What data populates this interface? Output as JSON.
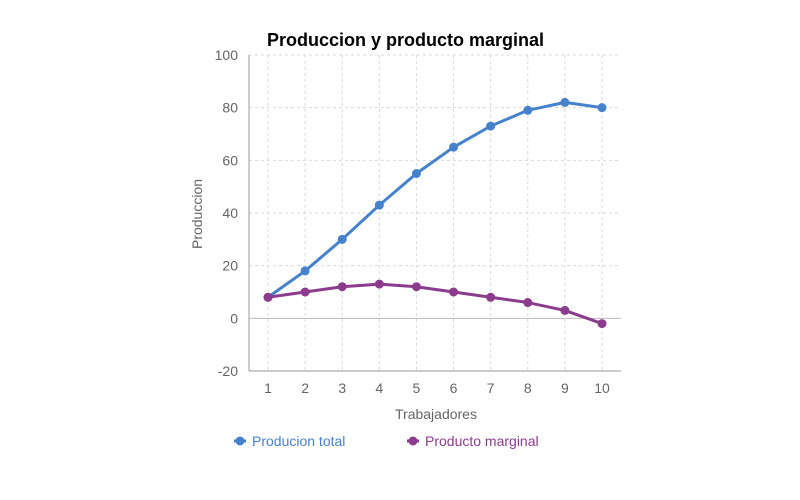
{
  "chart_data": {
    "type": "line",
    "title": "Produccion y producto marginal",
    "xlabel": "Trabajadores",
    "ylabel": "Produccion",
    "x": [
      1,
      2,
      3,
      4,
      5,
      6,
      7,
      8,
      9,
      10
    ],
    "xlim": [
      1,
      10
    ],
    "ylim": [
      -20,
      100
    ],
    "y_ticks": [
      -20,
      0,
      20,
      40,
      60,
      80,
      100
    ],
    "grid": true,
    "legend_position": "bottom",
    "series": [
      {
        "name": "Producion total",
        "color": "#4682cc",
        "values": [
          8,
          18,
          30,
          43,
          55,
          65,
          73,
          79,
          82,
          80
        ]
      },
      {
        "name": "Producto marginal",
        "color": "#8b3c8c",
        "values": [
          8,
          10,
          12,
          13,
          12,
          10,
          8,
          6,
          3,
          -2
        ]
      }
    ]
  }
}
